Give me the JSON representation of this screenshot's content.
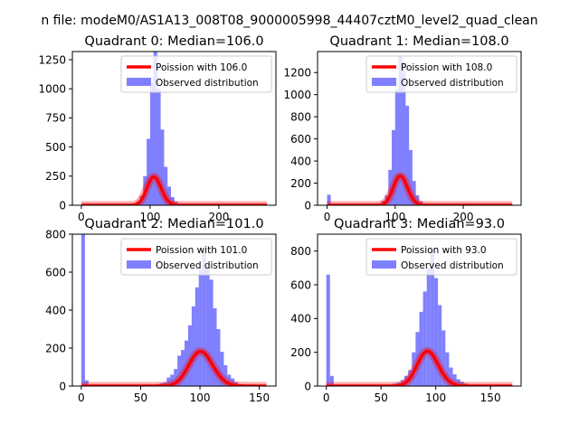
{
  "suptitle": "n file: modeM0/AS1A13_008T08_9000005998_44407cztM0_level2_quad_clean",
  "chart_data": [
    {
      "type": "bar",
      "title": "Quadrant 0: Median=106.0",
      "xlabel": "",
      "ylabel": "",
      "xlim": [
        -13,
        283
      ],
      "ylim": [
        0,
        1320
      ],
      "xticks": [
        0,
        100,
        200
      ],
      "yticks": [
        0,
        250,
        500,
        750,
        1000,
        1250
      ],
      "bin_width": 5.4,
      "legend_position": "top-right",
      "poisson_mean": 106,
      "poisson_total": 6300,
      "poisson_range": [
        0,
        270
      ],
      "series": [
        {
          "name": "Poission with 106.0",
          "kind": "line",
          "color": "#ff0000"
        },
        {
          "name": "Observed distribution",
          "kind": "hist",
          "color": "#8080ff",
          "bins": [
            {
              "x": 70,
              "y": 5
            },
            {
              "x": 75,
              "y": 10
            },
            {
              "x": 80,
              "y": 30
            },
            {
              "x": 85,
              "y": 80
            },
            {
              "x": 90,
              "y": 250
            },
            {
              "x": 95,
              "y": 570
            },
            {
              "x": 100,
              "y": 1050
            },
            {
              "x": 105,
              "y": 1320
            },
            {
              "x": 110,
              "y": 1000
            },
            {
              "x": 115,
              "y": 650
            },
            {
              "x": 120,
              "y": 330
            },
            {
              "x": 125,
              "y": 160
            },
            {
              "x": 130,
              "y": 70
            },
            {
              "x": 135,
              "y": 30
            },
            {
              "x": 140,
              "y": 10
            },
            {
              "x": 145,
              "y": 5
            }
          ]
        }
      ]
    },
    {
      "type": "bar",
      "title": "Quadrant 1: Median=108.0",
      "xlabel": "",
      "ylabel": "",
      "xlim": [
        -14,
        285
      ],
      "ylim": [
        0,
        1390
      ],
      "xticks": [
        0,
        100,
        200
      ],
      "yticks": [
        0,
        200,
        400,
        600,
        800,
        1000,
        1200
      ],
      "bin_width": 5.4,
      "legend_position": "top-right",
      "poisson_mean": 108,
      "poisson_total": 6900,
      "poisson_range": [
        0,
        272
      ],
      "series": [
        {
          "name": "Poission with 108.0",
          "kind": "line",
          "color": "#ff0000"
        },
        {
          "name": "Observed distribution",
          "kind": "hist",
          "color": "#8080ff",
          "bins": [
            {
              "x": 0,
              "y": 95
            },
            {
              "x": 5,
              "y": 10
            },
            {
              "x": 75,
              "y": 10
            },
            {
              "x": 80,
              "y": 40
            },
            {
              "x": 85,
              "y": 90
            },
            {
              "x": 90,
              "y": 320
            },
            {
              "x": 95,
              "y": 680
            },
            {
              "x": 100,
              "y": 1050
            },
            {
              "x": 105,
              "y": 1350
            },
            {
              "x": 110,
              "y": 1300
            },
            {
              "x": 115,
              "y": 900
            },
            {
              "x": 120,
              "y": 500
            },
            {
              "x": 125,
              "y": 220
            },
            {
              "x": 130,
              "y": 90
            },
            {
              "x": 135,
              "y": 35
            },
            {
              "x": 140,
              "y": 10
            }
          ]
        }
      ]
    },
    {
      "type": "bar",
      "title": "Quadrant 2: Median=101.0",
      "xlabel": "",
      "ylabel": "",
      "xlim": [
        -7.5,
        164
      ],
      "ylim": [
        0,
        800
      ],
      "xticks": [
        0,
        50,
        100,
        150
      ],
      "yticks": [
        0,
        200,
        400,
        600,
        800
      ],
      "bin_width": 3.1,
      "legend_position": "top-right",
      "poisson_mean": 101,
      "poisson_total": 4600,
      "poisson_range": [
        0,
        156
      ],
      "series": [
        {
          "name": "Poission with 101.0",
          "kind": "line",
          "color": "#ff0000"
        },
        {
          "name": "Observed distribution",
          "kind": "hist",
          "color": "#8080ff",
          "bins": [
            {
              "x": 0,
              "y": 800
            },
            {
              "x": 3,
              "y": 30
            },
            {
              "x": 60,
              "y": 5
            },
            {
              "x": 63,
              "y": 10
            },
            {
              "x": 66,
              "y": 15
            },
            {
              "x": 69,
              "y": 20
            },
            {
              "x": 72,
              "y": 45
            },
            {
              "x": 75,
              "y": 60
            },
            {
              "x": 78,
              "y": 90
            },
            {
              "x": 81,
              "y": 160
            },
            {
              "x": 84,
              "y": 190
            },
            {
              "x": 87,
              "y": 240
            },
            {
              "x": 90,
              "y": 320
            },
            {
              "x": 93,
              "y": 420
            },
            {
              "x": 96,
              "y": 520
            },
            {
              "x": 99,
              "y": 610
            },
            {
              "x": 102,
              "y": 700
            },
            {
              "x": 105,
              "y": 620
            },
            {
              "x": 108,
              "y": 560
            },
            {
              "x": 111,
              "y": 410
            },
            {
              "x": 114,
              "y": 300
            },
            {
              "x": 117,
              "y": 180
            },
            {
              "x": 120,
              "y": 110
            },
            {
              "x": 123,
              "y": 60
            },
            {
              "x": 126,
              "y": 40
            },
            {
              "x": 129,
              "y": 20
            },
            {
              "x": 132,
              "y": 10
            },
            {
              "x": 135,
              "y": 5
            }
          ]
        }
      ]
    },
    {
      "type": "bar",
      "title": "Quadrant 3: Median=93.0",
      "xlabel": "",
      "ylabel": "",
      "xlim": [
        -8,
        178
      ],
      "ylim": [
        0,
        900
      ],
      "xticks": [
        0,
        50,
        100,
        150
      ],
      "yticks": [
        0,
        200,
        400,
        600,
        800
      ],
      "bin_width": 3.4,
      "legend_position": "top-right",
      "poisson_mean": 93,
      "poisson_total": 5000,
      "poisson_range": [
        0,
        170
      ],
      "series": [
        {
          "name": "Poission with 93.0",
          "kind": "line",
          "color": "#ff0000"
        },
        {
          "name": "Observed distribution",
          "kind": "hist",
          "color": "#8080ff",
          "bins": [
            {
              "x": 0,
              "y": 660
            },
            {
              "x": 3.4,
              "y": 60
            },
            {
              "x": 51,
              "y": 5
            },
            {
              "x": 54.4,
              "y": 8
            },
            {
              "x": 57.8,
              "y": 10
            },
            {
              "x": 61.2,
              "y": 15
            },
            {
              "x": 64.6,
              "y": 20
            },
            {
              "x": 68,
              "y": 35
            },
            {
              "x": 71.4,
              "y": 60
            },
            {
              "x": 74.8,
              "y": 95
            },
            {
              "x": 78.2,
              "y": 200
            },
            {
              "x": 81.6,
              "y": 320
            },
            {
              "x": 85,
              "y": 440
            },
            {
              "x": 88.4,
              "y": 560
            },
            {
              "x": 91.8,
              "y": 700
            },
            {
              "x": 95.2,
              "y": 810
            },
            {
              "x": 98.6,
              "y": 640
            },
            {
              "x": 102,
              "y": 480
            },
            {
              "x": 105.4,
              "y": 330
            },
            {
              "x": 108.8,
              "y": 200
            },
            {
              "x": 112.2,
              "y": 110
            },
            {
              "x": 115.6,
              "y": 70
            },
            {
              "x": 119,
              "y": 40
            },
            {
              "x": 122.4,
              "y": 25
            },
            {
              "x": 125.8,
              "y": 15
            },
            {
              "x": 129.2,
              "y": 8
            },
            {
              "x": 132.6,
              "y": 5
            }
          ]
        }
      ]
    }
  ]
}
